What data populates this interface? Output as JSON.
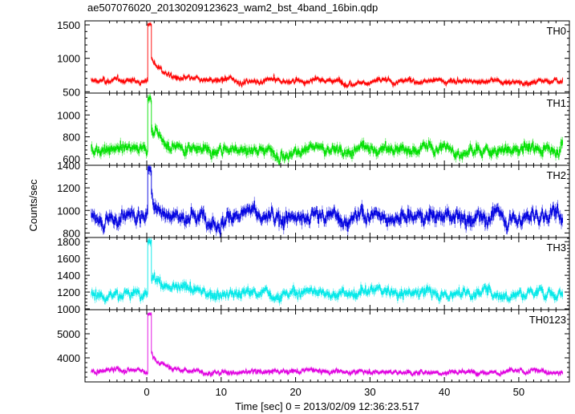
{
  "chart_data": {
    "type": "line",
    "title": "ae507076020_20130209123623_wam2_bst_4band_16bin.qdp",
    "xlabel": "Time [sec] 0 = 2013/02/09 12:36:23.517",
    "ylabel": "Counts/sec",
    "xlim": [
      -8.3,
      56.8
    ],
    "x_ticks": [
      0,
      10,
      20,
      30,
      40,
      50
    ],
    "x_tick_labels": [
      "0",
      "10",
      "20",
      "30",
      "40",
      "50"
    ],
    "grid": false,
    "panels": [
      {
        "name": "TH0",
        "color": "#ff0000",
        "ylim": [
          480,
          1560
        ],
        "y_ticks": [
          500,
          1000,
          1500
        ],
        "y_tick_labels": [
          "500",
          "1000",
          "1500"
        ],
        "baseline": 660,
        "noise": 45,
        "peak": 1520,
        "decay_amp": 380
      },
      {
        "name": "TH1",
        "color": "#00e000",
        "ylim": [
          540,
          1200
        ],
        "y_ticks": [
          600,
          800,
          1000
        ],
        "y_tick_labels": [
          "600",
          "800",
          "1000"
        ],
        "baseline": 690,
        "noise": 55,
        "peak": 1170,
        "decay_amp": 200
      },
      {
        "name": "TH2",
        "color": "#0000e0",
        "ylim": [
          760,
          1400
        ],
        "y_ticks": [
          800,
          1000,
          1200,
          1400
        ],
        "y_tick_labels": [
          "800",
          "1000",
          "1200",
          "1400"
        ],
        "baseline": 950,
        "noise": 70,
        "peak": 1390,
        "decay_amp": 150
      },
      {
        "name": "TH3",
        "color": "#00e8e8",
        "ylim": [
          990,
          1850
        ],
        "y_ticks": [
          1000,
          1200,
          1400,
          1600,
          1800
        ],
        "y_tick_labels": [
          "1000",
          "1200",
          "1400",
          "1600",
          "1800"
        ],
        "baseline": 1190,
        "noise": 65,
        "peak": 1820,
        "decay_amp": 230
      },
      {
        "name": "TH0123",
        "color": "#e000e0",
        "ylim": [
          3000,
          6000
        ],
        "y_ticks": [
          4000,
          5000
        ],
        "y_tick_labels": [
          "4000",
          "5000"
        ],
        "baseline": 3420,
        "noise": 110,
        "peak": 5850,
        "decay_amp": 800
      }
    ],
    "time_range": [
      -7.5,
      55.9
    ],
    "bin_width": 0.0625,
    "peak_time": 0.25
  }
}
